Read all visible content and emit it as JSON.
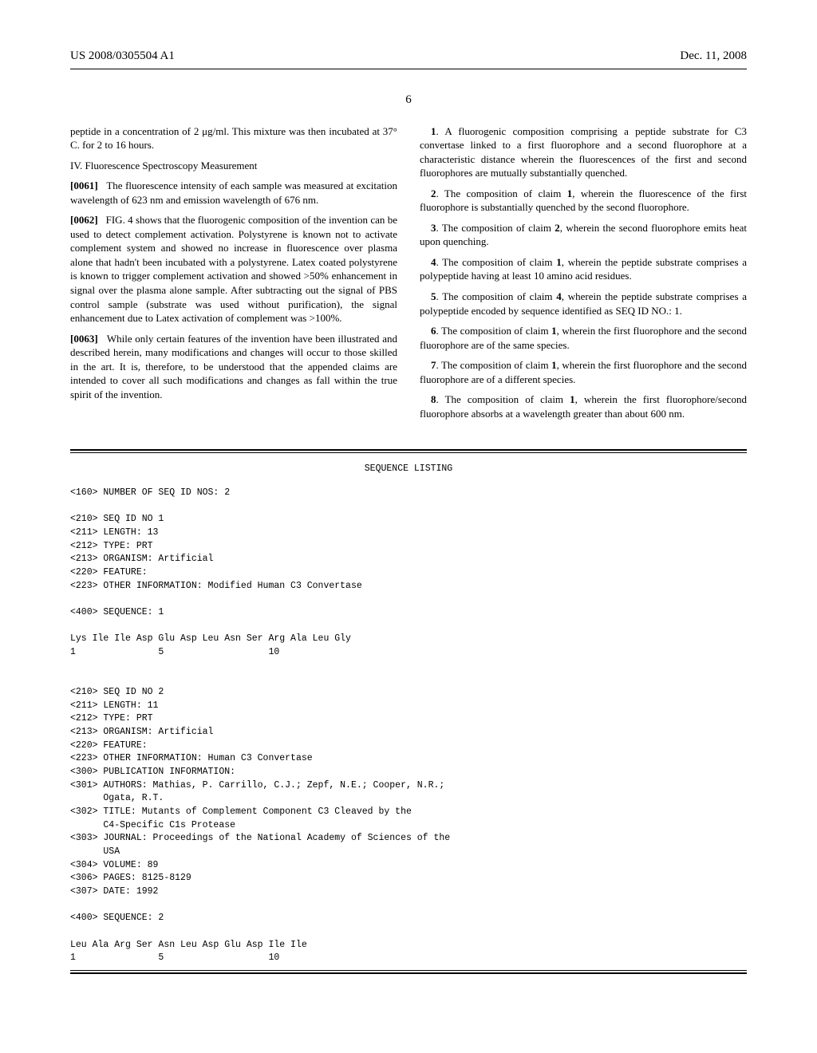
{
  "header": {
    "left": "US 2008/0305504 A1",
    "right": "Dec. 11, 2008"
  },
  "page_number": "6",
  "left_col": {
    "p1": "peptide in a concentration of 2 μg/ml. This mixture was then incubated at 37° C. for 2 to 16 hours.",
    "sec": "IV. Fluorescence Spectroscopy Measurement",
    "p2_num": "[0061]",
    "p2": "The fluorescence intensity of each sample was measured at excitation wavelength of 623 nm and emission wavelength of 676 nm.",
    "p3_num": "[0062]",
    "p3": "FIG. 4 shows that the fluorogenic composition of the invention can be used to detect complement activation. Polystyrene is known not to activate complement system and showed no increase in fluorescence over plasma alone that hadn't been incubated with a polystyrene. Latex coated polystyrene is known to trigger complement activation and showed >50% enhancement in signal over the plasma alone sample. After subtracting out the signal of PBS control sample (substrate was used without purification), the signal enhancement due to Latex activation of complement was >100%.",
    "p4_num": "[0063]",
    "p4": "While only certain features of the invention have been illustrated and described herein, many modifications and changes will occur to those skilled in the art. It is, therefore, to be understood that the appended claims are intended to cover all such modifications and changes as fall within the true spirit of the invention."
  },
  "right_col": {
    "c1_num": "1",
    "c1": ". A fluorogenic composition comprising a peptide substrate for C3 convertase linked to a first fluorophore and a second fluorophore at a characteristic distance wherein the fluorescences of the first and second fluorophores are mutually substantially quenched.",
    "c2_num": "2",
    "c2a": ". The composition of claim ",
    "c2_ref": "1",
    "c2b": ", wherein the fluorescence of the first fluorophore is substantially quenched by the second fluorophore.",
    "c3_num": "3",
    "c3a": ". The composition of claim ",
    "c3_ref": "2",
    "c3b": ", wherein the second fluorophore emits heat upon quenching.",
    "c4_num": "4",
    "c4a": ". The composition of claim ",
    "c4_ref": "1",
    "c4b": ", wherein the peptide substrate comprises a polypeptide having at least 10 amino acid residues.",
    "c5_num": "5",
    "c5a": ". The composition of claim ",
    "c5_ref": "4",
    "c5b": ", wherein the peptide substrate comprises a polypeptide encoded by sequence identified as SEQ ID NO.: 1.",
    "c6_num": "6",
    "c6a": ". The composition of claim ",
    "c6_ref": "1",
    "c6b": ", wherein the first fluorophore and the second fluorophore are of the same species.",
    "c7_num": "7",
    "c7a": ". The composition of claim ",
    "c7_ref": "1",
    "c7b": ", wherein the first fluorophore and the second fluorophore are of a different species.",
    "c8_num": "8",
    "c8a": ". The composition of claim ",
    "c8_ref": "1",
    "c8b": ", wherein the first fluorophore/second fluorophore absorbs at a wavelength greater than about 600 nm."
  },
  "seq": {
    "title": "SEQUENCE LISTING",
    "block1": "<160> NUMBER OF SEQ ID NOS: 2\n\n<210> SEQ ID NO 1\n<211> LENGTH: 13\n<212> TYPE: PRT\n<213> ORGANISM: Artificial\n<220> FEATURE:\n<223> OTHER INFORMATION: Modified Human C3 Convertase\n\n<400> SEQUENCE: 1\n\nLys Ile Ile Asp Glu Asp Leu Asn Ser Arg Ala Leu Gly\n1               5                   10\n\n\n<210> SEQ ID NO 2\n<211> LENGTH: 11\n<212> TYPE: PRT\n<213> ORGANISM: Artificial\n<220> FEATURE:\n<223> OTHER INFORMATION: Human C3 Convertase\n<300> PUBLICATION INFORMATION:\n<301> AUTHORS: Mathias, P. Carrillo, C.J.; Zepf, N.E.; Cooper, N.R.;\n      Ogata, R.T.\n<302> TITLE: Mutants of Complement Component C3 Cleaved by the\n      C4-Specific C1s Protease\n<303> JOURNAL: Proceedings of the National Academy of Sciences of the\n      USA\n<304> VOLUME: 89\n<306> PAGES: 8125-8129\n<307> DATE: 1992\n\n<400> SEQUENCE: 2\n\nLeu Ala Arg Ser Asn Leu Asp Glu Asp Ile Ile\n1               5                   10"
  }
}
